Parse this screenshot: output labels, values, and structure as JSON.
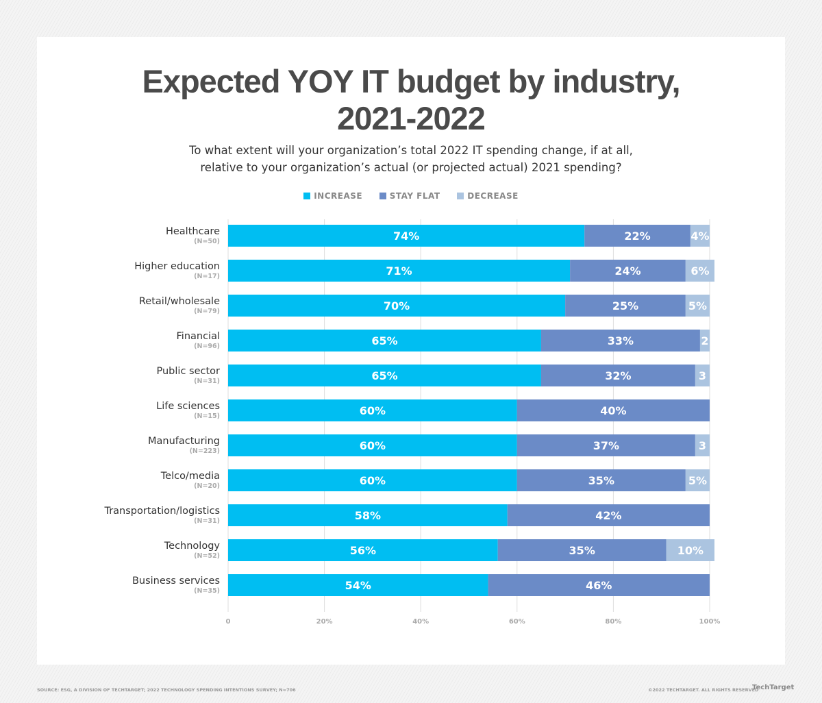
{
  "title_line1": "Expected YOY IT budget by industry,",
  "title_line2": "2021-2022",
  "subtitle_line1": "To what extent will your organization’s total 2022 IT spending change, if at all,",
  "subtitle_line2": "relative to your organization’s actual (or projected actual) 2021 spending?",
  "footer": {
    "source": "SOURCE: ESG, A DIVISION OF TECHTARGET; 2022 TECHNOLOGY SPENDING INTENTIONS SURVEY; N=706",
    "copyright": "©2022 TECHTARGET. ALL RIGHTS RESERVED",
    "logo": "TechTarget"
  },
  "chart_data": {
    "type": "bar",
    "orientation": "horizontal",
    "stacked": true,
    "categories": [
      "Healthcare",
      "Higher education",
      "Retail/wholesale",
      "Financial",
      "Public sector",
      "Life sciences",
      "Manufacturing",
      "Telco/media",
      "Transportation/logistics",
      "Technology",
      "Business services"
    ],
    "sample_sizes": [
      "(N=50)",
      "(N=17)",
      "(N=79)",
      "(N=96)",
      "(N=31)",
      "(N=15)",
      "(N=223)",
      "(N=20)",
      "(N=31)",
      "(N=52)",
      "(N=35)"
    ],
    "series": [
      {
        "name": "INCREASE",
        "color": "#00bef2",
        "values": [
          74,
          71,
          70,
          65,
          65,
          60,
          60,
          60,
          58,
          56,
          54
        ],
        "labels": [
          "74%",
          "71%",
          "70%",
          "65%",
          "65%",
          "60%",
          "60%",
          "60%",
          "58%",
          "56%",
          "54%"
        ]
      },
      {
        "name": "STAY FLAT",
        "color": "#6b8bc7",
        "values": [
          22,
          24,
          25,
          33,
          32,
          40,
          37,
          35,
          42,
          35,
          46
        ],
        "labels": [
          "22%",
          "24%",
          "25%",
          "33%",
          "32%",
          "40%",
          "37%",
          "35%",
          "42%",
          "35%",
          "46%"
        ]
      },
      {
        "name": "DECREASE",
        "color": "#abc4e0",
        "values": [
          4,
          6,
          5,
          2,
          3,
          0,
          3,
          5,
          0,
          10,
          0
        ],
        "labels": [
          "4%",
          "6%",
          "5%",
          "2",
          "3",
          "",
          "3",
          "5%",
          "",
          "10%",
          ""
        ]
      }
    ],
    "xlim": [
      0,
      100
    ],
    "xticks": [
      "0",
      "20%",
      "40%",
      "60%",
      "80%",
      "100%"
    ],
    "grid": true,
    "legend": "top"
  }
}
